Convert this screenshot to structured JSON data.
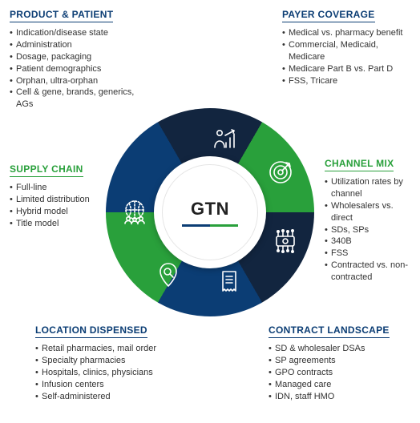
{
  "center": {
    "label": "GTN",
    "rule_colors": [
      "#0b3d74",
      "#29a03b"
    ]
  },
  "segments": {
    "colors": {
      "darkblue": "#12253f",
      "blue": "#0b3d74",
      "green": "#29a03b"
    },
    "order": [
      "product_patient",
      "payer_coverage",
      "channel_mix",
      "contract_landscape",
      "location_dispensed",
      "supply_chain"
    ],
    "fills": [
      "#0b3d74",
      "#12253f",
      "#29a03b",
      "#12253f",
      "#0b3d74",
      "#29a03b"
    ]
  },
  "blocks": {
    "product_patient": {
      "title": "PRODUCT & PATIENT",
      "color": "blue",
      "items": [
        "Indication/disease state",
        "Administration",
        "Dosage, packaging",
        "Patient demographics",
        "Orphan, ultra-orphan",
        "Cell & gene, brands, generics, AGs"
      ]
    },
    "payer_coverage": {
      "title": "PAYER COVERAGE",
      "color": "blue",
      "items": [
        "Medical vs. pharmacy benefit",
        "Commercial, Medicaid, Medicare",
        "Medicare Part B vs. Part D",
        "FSS, Tricare"
      ]
    },
    "supply_chain": {
      "title": "SUPPLY CHAIN",
      "color": "green",
      "items": [
        "Full-line",
        "Limited distribution",
        "Hybrid model",
        "Title model"
      ]
    },
    "channel_mix": {
      "title": "CHANNEL MIX",
      "color": "green",
      "items": [
        "Utilization rates by channel",
        "Wholesalers vs. direct",
        "SDs, SPs",
        "340B",
        "FSS",
        "Contracted vs. non-contracted"
      ]
    },
    "location_dispensed": {
      "title": "LOCATION DISPENSED",
      "color": "blue",
      "items": [
        "Retail pharmacies, mail order",
        "Specialty pharmacies",
        "Hospitals, clinics, physicians",
        "Infusion centers",
        "Self-administered"
      ]
    },
    "contract_landscape": {
      "title": "CONTRACT LANDSCAPE",
      "color": "blue",
      "items": [
        "SD & wholesaler DSAs",
        "SP agreements",
        "GPO contracts",
        "Managed care",
        "IDN, staff HMO"
      ]
    }
  }
}
